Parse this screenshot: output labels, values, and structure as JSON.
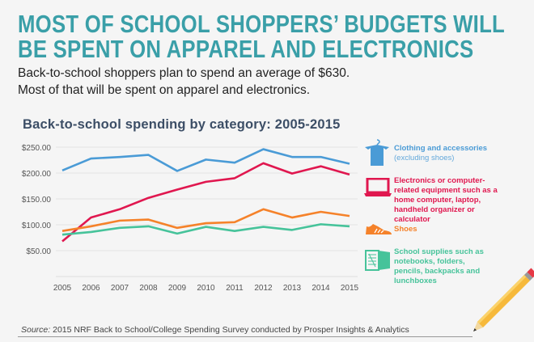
{
  "headline": [
    "MOST OF SCHOOL SHOPPERS’ BUDGETS WILL",
    "BE SPENT ON APPAREL AND ELECTRONICS"
  ],
  "subtitle": [
    "Back-to-school shoppers plan to spend an average of $630.",
    "Most of that will be spent on apparel and electronics."
  ],
  "source": {
    "label": "Source:",
    "text": " 2015 NRF Back to School/College Spending Survey conducted by Prosper Insights & Analytics"
  },
  "chart_data": {
    "type": "line",
    "title": "Back-to-school spending by category: 2005-2015",
    "x": [
      "2005",
      "2006",
      "2007",
      "2008",
      "2009",
      "2010",
      "2011",
      "2012",
      "2013",
      "2014",
      "2015"
    ],
    "ylim": [
      0,
      250
    ],
    "yticks": [
      50,
      100,
      150,
      200,
      250
    ],
    "ytick_labels": [
      "$50.00",
      "$100.00",
      "$150.00",
      "$200.00",
      "$250.00"
    ],
    "grid": true,
    "legend_placement": "right",
    "series": [
      {
        "name": "Clothing and accessories",
        "note": "(excluding shoes)",
        "icon": "shirt-icon",
        "color": "#4a9bd6",
        "values": [
          205,
          228,
          231,
          235,
          204,
          226,
          220,
          246,
          231,
          231,
          218
        ]
      },
      {
        "name": "Electronics or computer-related equipment such as a home computer, laptop, handheld organizer or calculator",
        "icon": "laptop-icon",
        "color": "#e0174f",
        "values": [
          68,
          114,
          130,
          152,
          168,
          183,
          190,
          219,
          199,
          213,
          197
        ]
      },
      {
        "name": "Shoes",
        "icon": "shoe-icon",
        "color": "#f5822a",
        "values": [
          88,
          97,
          108,
          110,
          94,
          103,
          105,
          130,
          114,
          125,
          117
        ]
      },
      {
        "name": "School supplies such as notebooks, folders, pencils, backpacks and lunchboxes",
        "icon": "notebook-icon",
        "color": "#46c39a",
        "values": [
          81,
          86,
          94,
          97,
          83,
          96,
          88,
          96,
          90,
          101,
          97
        ]
      }
    ]
  }
}
